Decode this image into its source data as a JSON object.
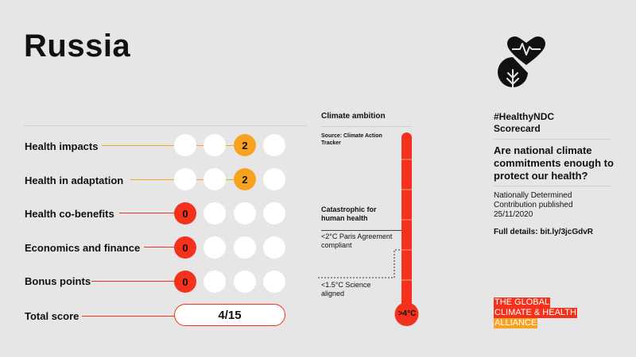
{
  "country": "Russia",
  "rows": [
    {
      "label": "Health impacts",
      "score": "2"
    },
    {
      "label": "Health in adaptation",
      "score": "2"
    },
    {
      "label": "Health co-benefits",
      "score": "0"
    },
    {
      "label": "Economics and finance",
      "score": "0"
    },
    {
      "label": "Bonus points",
      "score": "0"
    }
  ],
  "total": {
    "label": "Total score",
    "value": "4/15"
  },
  "climate_ambition": {
    "heading": "Climate ambition",
    "source": "Source: Climate Action Tracker",
    "catastrophic": "Catastrophic for human health",
    "paris": "<2°C Paris Agreement compliant",
    "science": "<1.5°C Science aligned",
    "rating": ">4°C"
  },
  "right": {
    "tag": "#HealthyNDC",
    "tag2": "Scorecard",
    "question": "Are national climate commitments enough to protect our health?",
    "ndc": "Nationally Determined Contribution published 25/11/2020",
    "details": "Full details: bit.ly/3jcGdvR"
  },
  "alliance": {
    "line1": "THE GLOBAL",
    "line2": "CLIMATE & HEALTH",
    "line3": "ALLIANCE"
  },
  "colors": {
    "red": "#f4311c",
    "orange": "#f7a320",
    "white": "#ffffff"
  },
  "icons": {
    "logo": "heart-leaf-icon"
  }
}
